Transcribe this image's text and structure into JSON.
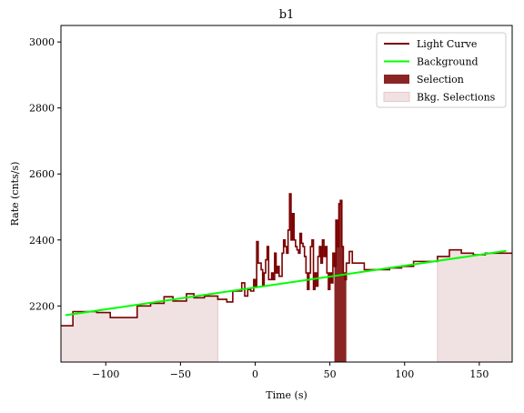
{
  "chart_data": {
    "type": "line",
    "title": "b1",
    "xlabel": "Time (s)",
    "ylabel": "Rate (cnts/s)",
    "xlim": [
      -130,
      172
    ],
    "ylim": [
      2030,
      3050
    ],
    "xticks": [
      -100,
      -50,
      0,
      50,
      100,
      150
    ],
    "yticks": [
      2200,
      2400,
      2600,
      2800,
      3000
    ],
    "xtick_labels": [
      "−100",
      "−50",
      "0",
      "50",
      "100",
      "150"
    ],
    "ytick_labels": [
      "2200",
      "2400",
      "2600",
      "2800",
      "3000"
    ],
    "grid": false,
    "legend_placement": "top-right",
    "colors": {
      "light_curve": "#7a0000",
      "background": "#00ff00",
      "selection": "#8b2525",
      "bkg_selection": "#f0e2e2",
      "bkg_selection_edge": "#e6c8c8"
    },
    "legend": [
      {
        "label": "Light Curve",
        "kind": "line",
        "color": "#7a0000"
      },
      {
        "label": "Background",
        "kind": "line",
        "color": "#00ff00"
      },
      {
        "label": "Selection",
        "kind": "patch",
        "color": "#8b2525"
      },
      {
        "label": "Bkg. Selections",
        "kind": "patch",
        "color": "#f0e2e2"
      }
    ],
    "light_curve": {
      "x": [
        -130,
        -122,
        -106,
        -97,
        -79,
        -70,
        -61,
        -55,
        -46,
        -41,
        -34,
        -25,
        -19,
        -15,
        -9,
        -7,
        -5,
        -3,
        -1,
        0,
        1,
        2,
        4,
        5,
        6,
        7,
        8,
        9,
        11,
        12,
        13,
        14,
        15,
        16,
        18,
        19,
        20,
        21,
        22,
        23,
        24,
        25,
        26,
        27,
        28,
        29,
        30,
        31,
        32,
        33,
        34,
        35,
        36,
        37,
        38,
        39,
        40,
        41,
        42,
        43,
        44,
        45,
        46,
        47,
        48,
        49,
        50,
        51,
        52,
        53,
        54,
        55,
        56,
        57,
        58,
        59,
        60,
        61,
        62,
        63,
        65,
        73,
        81,
        90,
        98,
        106,
        114,
        122,
        130,
        138,
        146,
        154,
        162
      ],
      "y": [
        2140,
        2183,
        2180,
        2165,
        2200,
        2208,
        2228,
        2215,
        2237,
        2225,
        2230,
        2220,
        2212,
        2245,
        2270,
        2230,
        2250,
        2245,
        2280,
        2260,
        2395,
        2330,
        2310,
        2260,
        2300,
        2340,
        2380,
        2280,
        2300,
        2280,
        2360,
        2300,
        2320,
        2290,
        2360,
        2400,
        2380,
        2360,
        2430,
        2540,
        2400,
        2480,
        2400,
        2380,
        2370,
        2360,
        2420,
        2390,
        2380,
        2350,
        2300,
        2250,
        2300,
        2380,
        2400,
        2250,
        2300,
        2260,
        2350,
        2380,
        2330,
        2400,
        2350,
        2380,
        2300,
        2250,
        2300,
        2270,
        2360,
        2320,
        2460,
        2380,
        2510,
        2520,
        2380,
        2300,
        2280,
        2330,
        2330,
        2365,
        2330,
        2310,
        2310,
        2315,
        2320,
        2335,
        2335,
        2350,
        2370,
        2360,
        2355,
        2360,
        2360
      ],
      "x_end": 172
    },
    "background": {
      "x": [
        -127,
        168
      ],
      "y": [
        2172,
        2367
      ]
    },
    "selection": [
      53,
      61
    ],
    "bkg_selections": [
      [
        -130,
        -25
      ],
      [
        122,
        172
      ]
    ]
  }
}
